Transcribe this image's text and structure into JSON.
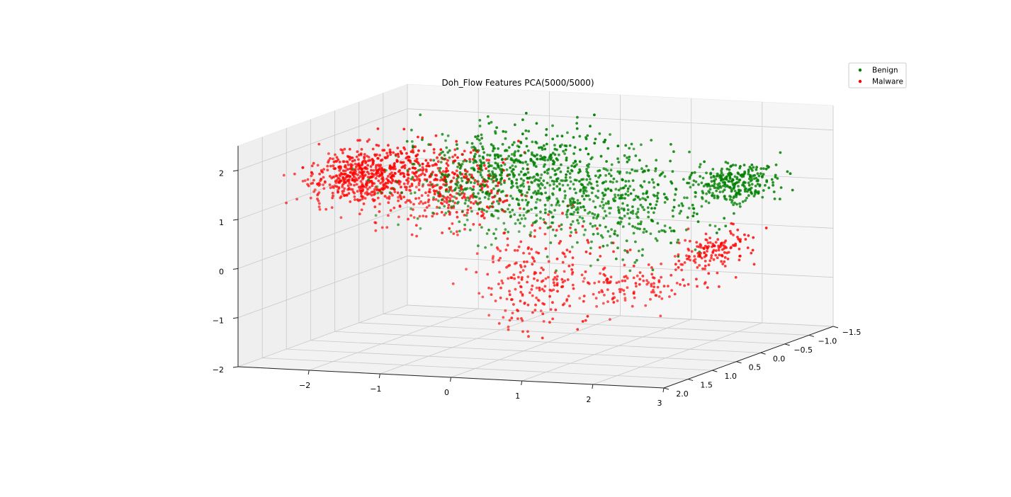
{
  "chart_data": {
    "type": "scatter",
    "projection": "3d",
    "title": "Doh_Flow Features PCA(5000/5000)",
    "xlabel": "",
    "ylabel": "",
    "zlabel": "",
    "xlim": [
      -3,
      3
    ],
    "ylim": [
      -1.5,
      2.0
    ],
    "zlim": [
      -2,
      2.5
    ],
    "x_ticks": [
      "-2",
      "-1",
      "0",
      "1",
      "2",
      "3"
    ],
    "y_ticks": [
      "-1.5",
      "-1.0",
      "-0.5",
      "0.0",
      "0.5",
      "1.0",
      "1.5",
      "2.0"
    ],
    "z_ticks": [
      "-2",
      "-1",
      "0",
      "1",
      "2"
    ],
    "grid": true,
    "legend_position": "top-right",
    "series": [
      {
        "name": "Benign",
        "color": "#008000",
        "n_points": 5000,
        "clusters": [
          {
            "x": -0.6,
            "y": 0.2,
            "z": 1.5,
            "spread": [
              0.5,
              0.6,
              0.4
            ],
            "share": 0.3
          },
          {
            "x": 0.3,
            "y": 0.3,
            "z": 1.3,
            "spread": [
              0.6,
              0.6,
              0.5
            ],
            "share": 0.32
          },
          {
            "x": 1.4,
            "y": 0.2,
            "z": 1.0,
            "spread": [
              0.5,
              0.5,
              0.5
            ],
            "share": 0.18
          },
          {
            "x": 2.6,
            "y": 0.0,
            "z": 1.4,
            "spread": [
              0.25,
              0.3,
              0.2
            ],
            "share": 0.2
          }
        ]
      },
      {
        "name": "Malware",
        "color": "#ff0000",
        "n_points": 5000,
        "clusters": [
          {
            "x": -2.3,
            "y": 0.4,
            "z": 1.4,
            "spread": [
              0.3,
              0.4,
              0.25
            ],
            "share": 0.4
          },
          {
            "x": -1.2,
            "y": 0.4,
            "z": 1.2,
            "spread": [
              0.35,
              0.4,
              0.35
            ],
            "share": 0.25
          },
          {
            "x": 0.2,
            "y": 0.6,
            "z": -0.3,
            "spread": [
              0.3,
              0.4,
              0.6
            ],
            "share": 0.15
          },
          {
            "x": 1.6,
            "y": 0.8,
            "z": -0.4,
            "spread": [
              0.5,
              0.4,
              0.2
            ],
            "share": 0.1
          },
          {
            "x": 2.6,
            "y": 0.4,
            "z": 0.2,
            "spread": [
              0.15,
              0.3,
              0.2
            ],
            "share": 0.1
          }
        ]
      }
    ]
  }
}
